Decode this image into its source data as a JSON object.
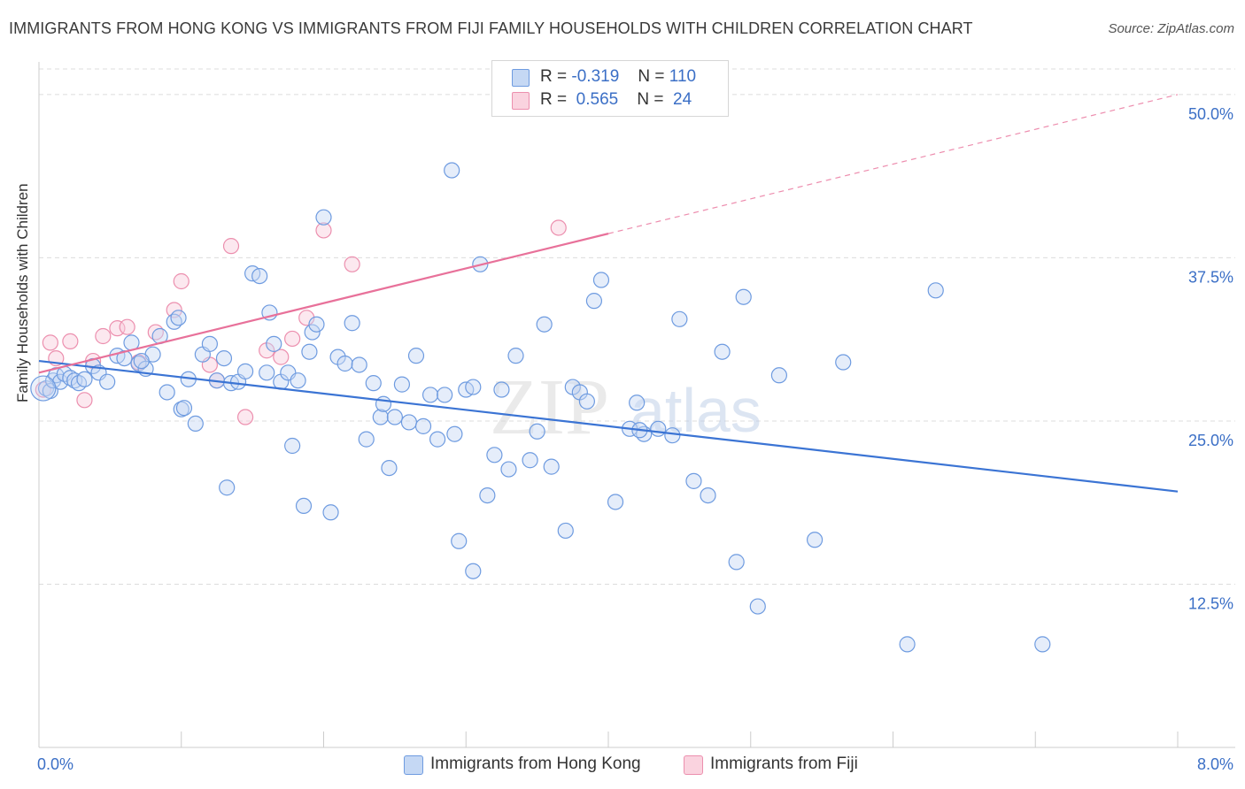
{
  "header": {
    "title": "IMMIGRANTS FROM HONG KONG VS IMMIGRANTS FROM FIJI FAMILY HOUSEHOLDS WITH CHILDREN CORRELATION CHART",
    "source": "Source: ZipAtlas.com"
  },
  "watermark": {
    "zip": "ZIP",
    "atlas": "atlas"
  },
  "legend_top": [
    {
      "r_label": "R =",
      "r_value": "-0.319",
      "n_label": "N =",
      "n_value": "110",
      "fill": "#a9c6ee",
      "stroke": "#6e9be0"
    },
    {
      "r_label": "R =",
      "r_value": "0.565",
      "n_label": "N =",
      "n_value": "24",
      "fill": "#f7bfd0",
      "stroke": "#ec8fae"
    }
  ],
  "legend_bottom": [
    {
      "label": "Immigrants from Hong Kong",
      "fill": "#a9c6ee",
      "stroke": "#6e9be0"
    },
    {
      "label": "Immigrants from Fiji",
      "fill": "#f7bfd0",
      "stroke": "#ec8fae"
    }
  ],
  "chart_data": {
    "type": "scatter",
    "title": "IMMIGRANTS FROM HONG KONG VS IMMIGRANTS FROM FIJI FAMILY HOUSEHOLDS WITH CHILDREN CORRELATION CHART",
    "xlabel": "",
    "ylabel": "Family Households with Children",
    "xlim": [
      0,
      8.0
    ],
    "ylim": [
      0,
      52.5
    ],
    "x_tick_labels": [
      {
        "value": 0,
        "label": "0.0%"
      },
      {
        "value": 8.0,
        "label": "8.0%"
      }
    ],
    "y_tick_labels": [
      {
        "value": 12.5,
        "label": "12.5%"
      },
      {
        "value": 25.0,
        "label": "25.0%"
      },
      {
        "value": 37.5,
        "label": "37.5%"
      },
      {
        "value": 50.0,
        "label": "50.0%"
      }
    ],
    "grid": "horizontal-dashed",
    "legend_position": "top-center",
    "colors": {
      "hong_kong": "#3b74d4",
      "fiji": "#e8719a"
    },
    "series": [
      {
        "name": "Immigrants from Hong Kong",
        "color": "#6e9be0",
        "trend": {
          "x": [
            0.0,
            8.0
          ],
          "y": [
            29.6,
            19.6
          ]
        },
        "points": [
          [
            0.05,
            27.5
          ],
          [
            0.08,
            27.3
          ],
          [
            0.1,
            28.1
          ],
          [
            0.12,
            28.5
          ],
          [
            0.15,
            28.0
          ],
          [
            0.18,
            28.6
          ],
          [
            0.22,
            28.3
          ],
          [
            0.25,
            28.1
          ],
          [
            0.28,
            27.9
          ],
          [
            0.32,
            28.2
          ],
          [
            0.38,
            29.2
          ],
          [
            0.42,
            28.7
          ],
          [
            0.48,
            28.0
          ],
          [
            0.55,
            30.0
          ],
          [
            0.6,
            29.8
          ],
          [
            0.65,
            31.0
          ],
          [
            0.7,
            29.4
          ],
          [
            0.75,
            29.0
          ],
          [
            0.8,
            30.1
          ],
          [
            0.85,
            31.5
          ],
          [
            0.9,
            27.2
          ],
          [
            0.95,
            32.6
          ],
          [
            0.98,
            32.9
          ],
          [
            1.0,
            25.9
          ],
          [
            1.02,
            26.0
          ],
          [
            1.05,
            28.2
          ],
          [
            1.1,
            24.8
          ],
          [
            1.15,
            30.1
          ],
          [
            1.2,
            30.9
          ],
          [
            1.25,
            28.1
          ],
          [
            1.3,
            29.8
          ],
          [
            1.32,
            19.9
          ],
          [
            1.35,
            27.9
          ],
          [
            1.4,
            28.0
          ],
          [
            1.45,
            28.8
          ],
          [
            1.5,
            36.3
          ],
          [
            1.55,
            36.1
          ],
          [
            1.6,
            28.7
          ],
          [
            1.62,
            33.3
          ],
          [
            1.65,
            30.9
          ],
          [
            1.7,
            28.0
          ],
          [
            1.75,
            28.7
          ],
          [
            1.78,
            23.1
          ],
          [
            1.82,
            28.1
          ],
          [
            1.86,
            18.5
          ],
          [
            1.9,
            30.3
          ],
          [
            1.92,
            31.8
          ],
          [
            1.95,
            32.4
          ],
          [
            2.0,
            40.6
          ],
          [
            2.05,
            18.0
          ],
          [
            2.1,
            29.9
          ],
          [
            2.15,
            29.4
          ],
          [
            2.2,
            32.5
          ],
          [
            2.25,
            29.3
          ],
          [
            2.3,
            23.6
          ],
          [
            2.35,
            27.9
          ],
          [
            2.4,
            25.3
          ],
          [
            2.42,
            26.3
          ],
          [
            2.46,
            21.4
          ],
          [
            2.5,
            25.3
          ],
          [
            2.55,
            27.8
          ],
          [
            2.6,
            24.9
          ],
          [
            2.65,
            30.0
          ],
          [
            2.7,
            24.6
          ],
          [
            2.75,
            27.0
          ],
          [
            2.8,
            23.6
          ],
          [
            2.85,
            27.0
          ],
          [
            2.9,
            44.2
          ],
          [
            2.92,
            24.0
          ],
          [
            2.95,
            15.8
          ],
          [
            3.0,
            27.4
          ],
          [
            3.05,
            13.5
          ],
          [
            3.1,
            37.0
          ],
          [
            3.15,
            19.3
          ],
          [
            3.2,
            22.4
          ],
          [
            3.25,
            27.4
          ],
          [
            3.3,
            21.3
          ],
          [
            3.35,
            30.0
          ],
          [
            3.45,
            22.0
          ],
          [
            3.5,
            24.2
          ],
          [
            3.55,
            32.4
          ],
          [
            3.6,
            21.5
          ],
          [
            3.7,
            16.6
          ],
          [
            3.75,
            27.6
          ],
          [
            3.8,
            27.2
          ],
          [
            3.85,
            26.5
          ],
          [
            3.9,
            34.2
          ],
          [
            3.95,
            35.8
          ],
          [
            4.05,
            18.8
          ],
          [
            4.15,
            24.4
          ],
          [
            4.2,
            26.4
          ],
          [
            4.25,
            24.0
          ],
          [
            4.35,
            24.4
          ],
          [
            4.45,
            23.9
          ],
          [
            4.5,
            32.8
          ],
          [
            4.6,
            20.4
          ],
          [
            4.7,
            19.3
          ],
          [
            4.8,
            30.3
          ],
          [
            4.9,
            14.2
          ],
          [
            4.95,
            34.5
          ],
          [
            5.05,
            10.8
          ],
          [
            5.2,
            28.5
          ],
          [
            5.45,
            15.9
          ],
          [
            5.65,
            29.5
          ],
          [
            6.1,
            7.9
          ],
          [
            6.3,
            35.0
          ],
          [
            7.05,
            7.9
          ],
          [
            4.22,
            24.3
          ],
          [
            3.05,
            27.6
          ],
          [
            0.72,
            29.6
          ]
        ]
      },
      {
        "name": "Immigrants from Fiji",
        "color": "#ec8fae",
        "trend": {
          "x": [
            0.0,
            8.0
          ],
          "y": [
            28.7,
            50.0
          ],
          "solid_until_x": 4.0
        },
        "points": [
          [
            0.03,
            27.4
          ],
          [
            0.12,
            29.8
          ],
          [
            0.22,
            31.1
          ],
          [
            0.32,
            26.6
          ],
          [
            0.38,
            29.6
          ],
          [
            0.45,
            31.5
          ],
          [
            0.55,
            32.1
          ],
          [
            0.62,
            32.2
          ],
          [
            0.7,
            29.5
          ],
          [
            0.82,
            31.8
          ],
          [
            0.95,
            33.5
          ],
          [
            1.0,
            35.7
          ],
          [
            1.2,
            29.3
          ],
          [
            1.25,
            28.1
          ],
          [
            1.35,
            38.4
          ],
          [
            1.45,
            25.3
          ],
          [
            1.6,
            30.4
          ],
          [
            1.7,
            29.9
          ],
          [
            1.78,
            31.3
          ],
          [
            1.88,
            32.9
          ],
          [
            2.0,
            39.6
          ],
          [
            2.2,
            37.0
          ],
          [
            3.65,
            39.8
          ],
          [
            0.08,
            31.0
          ]
        ]
      }
    ]
  }
}
